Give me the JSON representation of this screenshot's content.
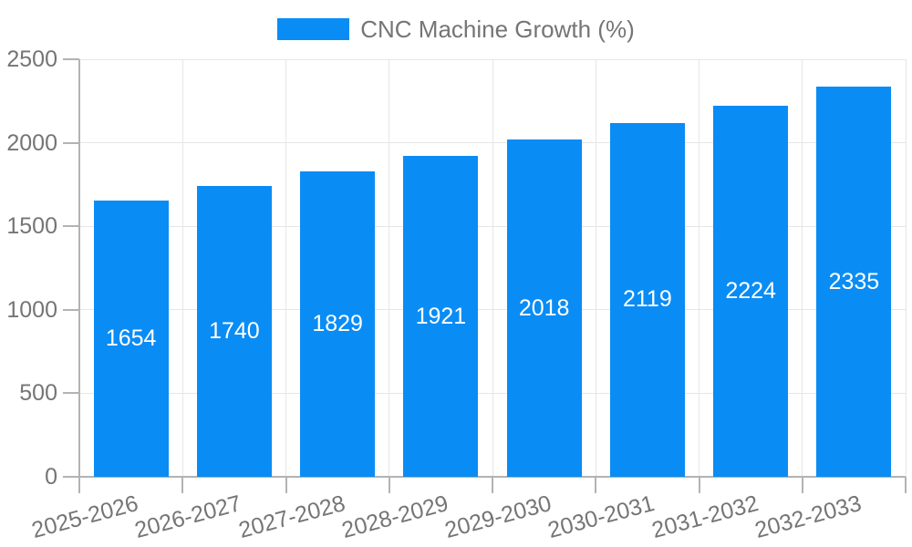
{
  "colors": {
    "bar": "#0a8cf5",
    "grid": "#e6e6e6",
    "axis": "#b3b3b3",
    "text": "#757575",
    "value_label": "#ffffff",
    "background": "#ffffff"
  },
  "legend": {
    "label": "CNC Machine Growth (%)"
  },
  "chart_data": {
    "type": "bar",
    "title": "CNC Machine Growth (%)",
    "categories": [
      "2025-2026",
      "2026-2027",
      "2027-2028",
      "2028-2029",
      "2029-2030",
      "2030-2031",
      "2031-2032",
      "2032-2033"
    ],
    "values": [
      1654,
      1740,
      1829,
      1921,
      2018,
      2119,
      2224,
      2335
    ],
    "series": [
      {
        "name": "CNC Machine Growth (%)",
        "values": [
          1654,
          1740,
          1829,
          1921,
          2018,
          2119,
          2224,
          2335
        ]
      }
    ],
    "xlabel": "",
    "ylabel": "",
    "ylim": [
      0,
      2500
    ],
    "y_ticks": [
      0,
      500,
      1000,
      1500,
      2000,
      2500
    ],
    "grid": true,
    "legend_position": "top",
    "value_label_position": "inside-center",
    "x_label_rotation_deg": -15
  }
}
